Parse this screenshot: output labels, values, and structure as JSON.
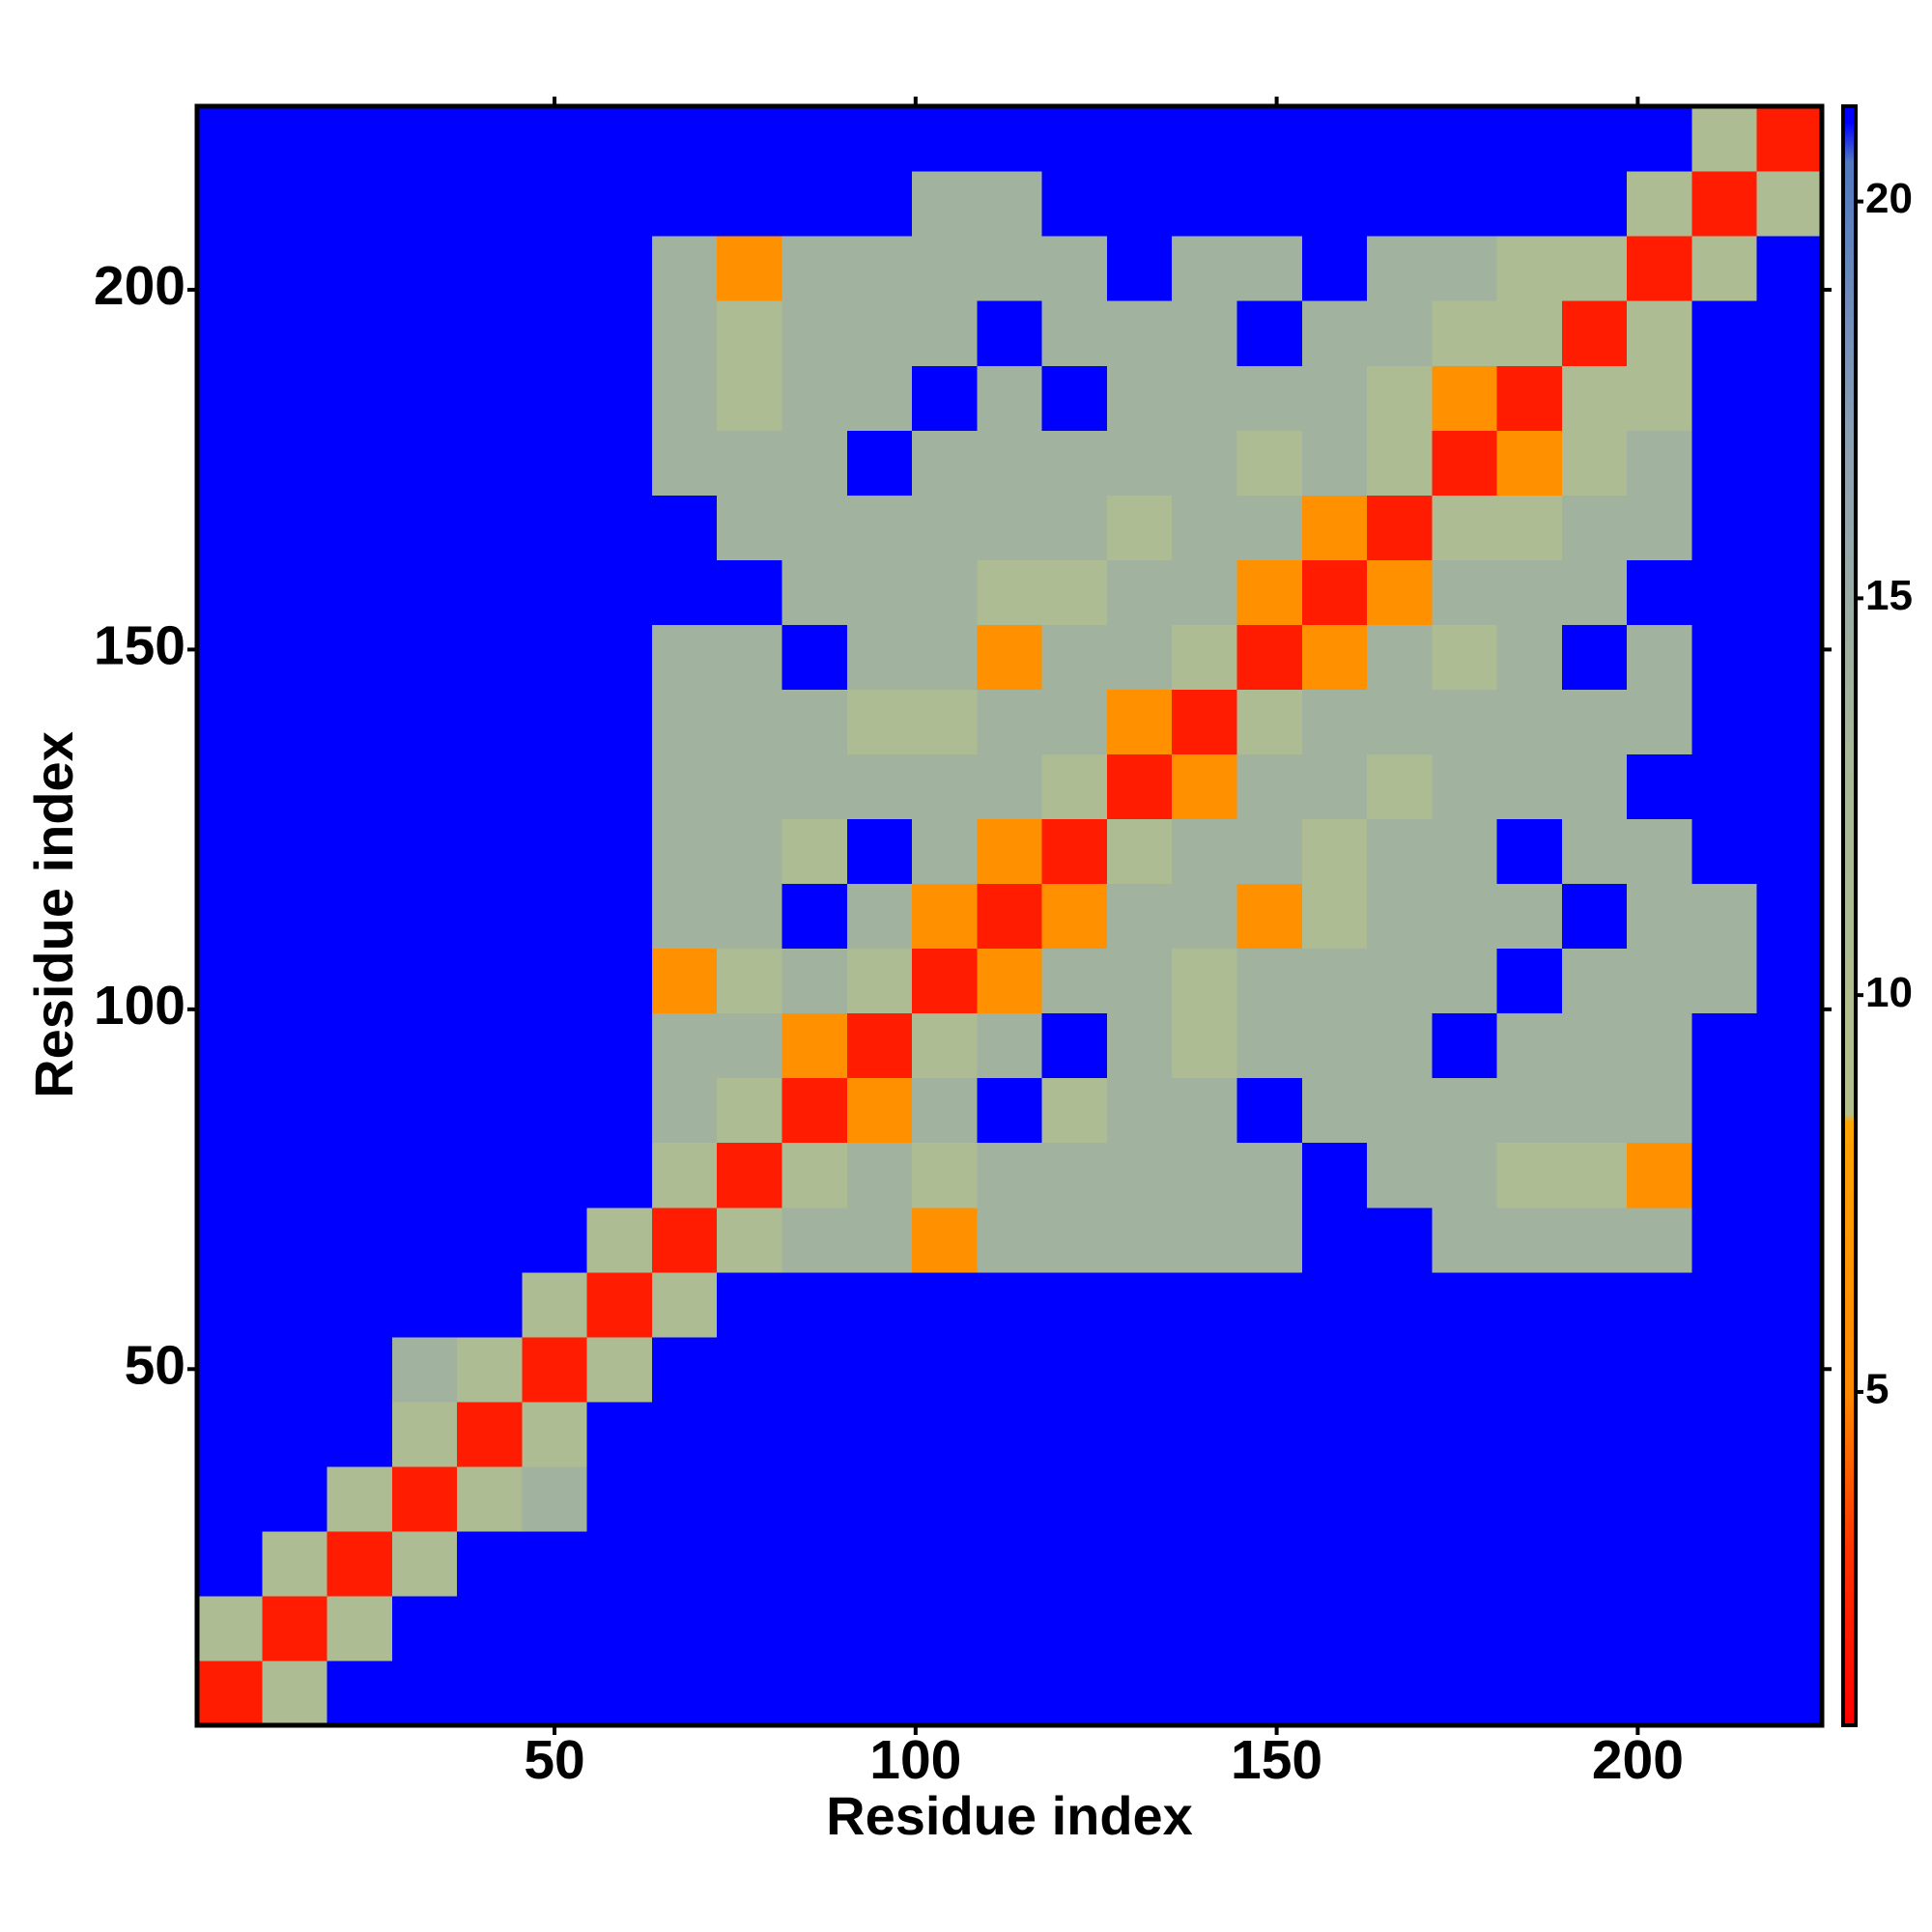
{
  "chart_data": {
    "type": "heatmap",
    "x_label": "Residue index",
    "y_label": "Residue index",
    "xbins": [
      0.5,
      9.5,
      18.5,
      27.5,
      36.5,
      45.5,
      54.5,
      63.5,
      72.5,
      81.5,
      90.5,
      99.5,
      108.5,
      117.5,
      126.5,
      135.5,
      144.5,
      153.5,
      162.5,
      171.5,
      180.5,
      189.5,
      198.5,
      207.5,
      216.5,
      225.5
    ],
    "ybins": [
      0.5,
      9.5,
      18.5,
      27.5,
      36.5,
      45.5,
      54.5,
      63.5,
      72.5,
      81.5,
      90.5,
      99.5,
      108.5,
      117.5,
      126.5,
      135.5,
      144.5,
      153.5,
      162.5,
      171.5,
      180.5,
      189.5,
      198.5,
      207.5,
      216.5,
      225.5
    ],
    "xlim": [
      0.5,
      225.5
    ],
    "ylim": [
      0.5,
      225.5
    ],
    "xticks": [
      50,
      100,
      150,
      200
    ],
    "yticks": [
      50,
      100,
      150,
      200
    ],
    "clim": [
      0.8,
      21.2
    ],
    "cticks": [
      5,
      10,
      15,
      20
    ],
    "colorscale": [
      {
        "value": 0.8,
        "color": "#ff0000"
      },
      {
        "value": 3,
        "color": "#ff3300"
      },
      {
        "value": 5,
        "color": "#ff8800"
      },
      {
        "value": 8.4,
        "color": "#ffa500"
      },
      {
        "value": 8.5,
        "color": "#b4c08c"
      },
      {
        "value": 13,
        "color": "#a8b898"
      },
      {
        "value": 17,
        "color": "#8ca0b4"
      },
      {
        "value": 20.5,
        "color": "#5078c0"
      },
      {
        "value": 21,
        "color": "#0000ff"
      }
    ],
    "z": [
      [
        2,
        11,
        21,
        21,
        21,
        21,
        21,
        21,
        21,
        21,
        21,
        21,
        21,
        21,
        21,
        21,
        21,
        21,
        21,
        21,
        21,
        21,
        21,
        21,
        21
      ],
      [
        11,
        2,
        11,
        21,
        21,
        21,
        21,
        21,
        21,
        21,
        21,
        21,
        21,
        21,
        21,
        21,
        21,
        21,
        21,
        21,
        21,
        21,
        21,
        21,
        21
      ],
      [
        21,
        11,
        2,
        11,
        21,
        21,
        21,
        21,
        21,
        21,
        21,
        21,
        21,
        21,
        21,
        21,
        21,
        21,
        21,
        21,
        21,
        21,
        21,
        21,
        21
      ],
      [
        21,
        21,
        11,
        2,
        11,
        14,
        21,
        21,
        21,
        21,
        21,
        21,
        21,
        21,
        21,
        21,
        21,
        21,
        21,
        21,
        21,
        21,
        21,
        21,
        21
      ],
      [
        21,
        21,
        21,
        11,
        2,
        11,
        21,
        21,
        21,
        21,
        21,
        21,
        21,
        21,
        21,
        21,
        21,
        21,
        21,
        21,
        21,
        21,
        21,
        21,
        21
      ],
      [
        21,
        21,
        21,
        14,
        11,
        2,
        11,
        21,
        21,
        21,
        21,
        21,
        21,
        21,
        21,
        21,
        21,
        21,
        21,
        21,
        21,
        21,
        21,
        21,
        21
      ],
      [
        21,
        21,
        21,
        21,
        21,
        11,
        2,
        11,
        21,
        21,
        21,
        21,
        21,
        21,
        21,
        21,
        21,
        21,
        21,
        21,
        21,
        21,
        21,
        21,
        21
      ],
      [
        21,
        21,
        21,
        21,
        21,
        21,
        11,
        2,
        11,
        14,
        14,
        6,
        14,
        14,
        14,
        14,
        14,
        21,
        21,
        14,
        14,
        14,
        14,
        21,
        21
      ],
      [
        21,
        21,
        21,
        21,
        21,
        21,
        21,
        11,
        2,
        11,
        14,
        11,
        14,
        14,
        14,
        14,
        14,
        21,
        14,
        14,
        11,
        11,
        6,
        21,
        21
      ],
      [
        21,
        21,
        21,
        21,
        21,
        21,
        21,
        14,
        11,
        2,
        6,
        14,
        21,
        11,
        14,
        14,
        21,
        14,
        14,
        14,
        14,
        14,
        14,
        21,
        21
      ],
      [
        21,
        21,
        21,
        21,
        21,
        21,
        21,
        14,
        14,
        6,
        2,
        11,
        14,
        21,
        14,
        11,
        14,
        14,
        14,
        21,
        14,
        14,
        14,
        21,
        21
      ],
      [
        21,
        21,
        21,
        21,
        21,
        21,
        21,
        6,
        11,
        14,
        11,
        2,
        6,
        14,
        14,
        11,
        14,
        14,
        14,
        14,
        21,
        14,
        14,
        14,
        21
      ],
      [
        21,
        21,
        21,
        21,
        21,
        21,
        21,
        14,
        14,
        21,
        14,
        6,
        2,
        6,
        14,
        14,
        6,
        11,
        14,
        14,
        14,
        21,
        14,
        14,
        21
      ],
      [
        21,
        21,
        21,
        21,
        21,
        21,
        21,
        14,
        14,
        11,
        21,
        14,
        6,
        2,
        11,
        14,
        14,
        11,
        14,
        14,
        21,
        14,
        14,
        21,
        21
      ],
      [
        21,
        21,
        21,
        21,
        21,
        21,
        21,
        14,
        14,
        14,
        14,
        14,
        14,
        11,
        2,
        6,
        14,
        14,
        11,
        14,
        14,
        14,
        21,
        21,
        21
      ],
      [
        21,
        21,
        21,
        21,
        21,
        21,
        21,
        14,
        14,
        14,
        11,
        11,
        14,
        14,
        6,
        2,
        11,
        14,
        14,
        14,
        14,
        14,
        14,
        21,
        21
      ],
      [
        21,
        21,
        21,
        21,
        21,
        21,
        21,
        14,
        14,
        21,
        14,
        14,
        6,
        14,
        14,
        11,
        2,
        6,
        14,
        11,
        14,
        21,
        14,
        21,
        21
      ],
      [
        21,
        21,
        21,
        21,
        21,
        21,
        21,
        21,
        21,
        14,
        14,
        14,
        11,
        11,
        14,
        14,
        6,
        2,
        6,
        14,
        14,
        14,
        21,
        21,
        21
      ],
      [
        21,
        21,
        21,
        21,
        21,
        21,
        21,
        21,
        14,
        14,
        14,
        14,
        14,
        14,
        11,
        14,
        14,
        6,
        2,
        11,
        11,
        14,
        14,
        21,
        21
      ],
      [
        21,
        21,
        21,
        21,
        21,
        21,
        21,
        14,
        14,
        14,
        21,
        14,
        14,
        14,
        14,
        14,
        11,
        14,
        11,
        2,
        6,
        11,
        14,
        21,
        21
      ],
      [
        21,
        21,
        21,
        21,
        21,
        21,
        21,
        14,
        11,
        14,
        14,
        21,
        14,
        21,
        14,
        14,
        14,
        14,
        11,
        6,
        2,
        11,
        11,
        21,
        21
      ],
      [
        21,
        21,
        21,
        21,
        21,
        21,
        21,
        14,
        11,
        14,
        14,
        14,
        21,
        14,
        14,
        14,
        21,
        14,
        14,
        11,
        11,
        2,
        11,
        21,
        21
      ],
      [
        21,
        21,
        21,
        21,
        21,
        21,
        21,
        14,
        6,
        14,
        14,
        14,
        14,
        14,
        21,
        14,
        14,
        21,
        14,
        14,
        11,
        11,
        2,
        11,
        21
      ],
      [
        21,
        21,
        21,
        21,
        21,
        21,
        21,
        21,
        21,
        21,
        21,
        14,
        14,
        21,
        21,
        21,
        21,
        21,
        21,
        21,
        21,
        21,
        11,
        2,
        11
      ],
      [
        21,
        21,
        21,
        21,
        21,
        21,
        21,
        21,
        21,
        21,
        21,
        21,
        21,
        21,
        21,
        21,
        21,
        21,
        21,
        21,
        21,
        21,
        21,
        11,
        2
      ]
    ]
  }
}
